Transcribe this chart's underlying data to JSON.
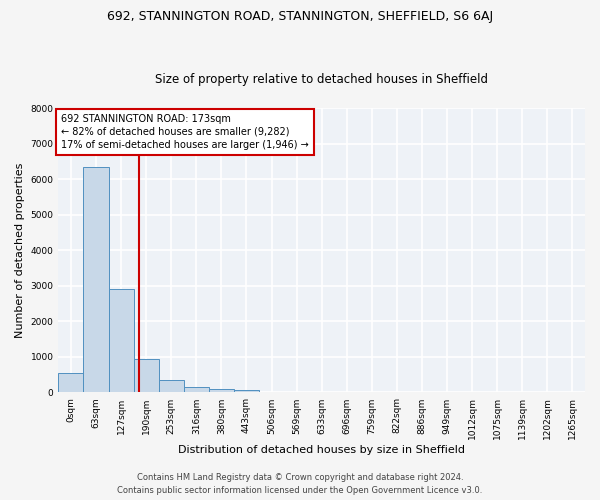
{
  "title_line1": "692, STANNINGTON ROAD, STANNINGTON, SHEFFIELD, S6 6AJ",
  "title_line2": "Size of property relative to detached houses in Sheffield",
  "xlabel": "Distribution of detached houses by size in Sheffield",
  "ylabel": "Number of detached properties",
  "bar_color": "#c8d8e8",
  "bar_edge_color": "#5090c0",
  "background_color": "#eef2f7",
  "grid_color": "#ffffff",
  "categories": [
    "0sqm",
    "63sqm",
    "127sqm",
    "190sqm",
    "253sqm",
    "316sqm",
    "380sqm",
    "443sqm",
    "506sqm",
    "569sqm",
    "633sqm",
    "696sqm",
    "759sqm",
    "822sqm",
    "886sqm",
    "949sqm",
    "1012sqm",
    "1075sqm",
    "1139sqm",
    "1202sqm",
    "1265sqm"
  ],
  "values": [
    550,
    6350,
    2900,
    950,
    340,
    155,
    100,
    70,
    0,
    0,
    0,
    0,
    0,
    0,
    0,
    0,
    0,
    0,
    0,
    0,
    0
  ],
  "ylim": [
    0,
    8000
  ],
  "yticks": [
    0,
    1000,
    2000,
    3000,
    4000,
    5000,
    6000,
    7000,
    8000
  ],
  "annotation_text": "692 STANNINGTON ROAD: 173sqm\n← 82% of detached houses are smaller (9,282)\n17% of semi-detached houses are larger (1,946) →",
  "annotation_box_color": "#ffffff",
  "annotation_border_color": "#cc0000",
  "vline_color": "#cc0000",
  "footer_line1": "Contains HM Land Registry data © Crown copyright and database right 2024.",
  "footer_line2": "Contains public sector information licensed under the Open Government Licence v3.0.",
  "title_fontsize": 9,
  "subtitle_fontsize": 8.5,
  "axis_label_fontsize": 8,
  "tick_fontsize": 6.5,
  "annotation_fontsize": 7,
  "footer_fontsize": 6
}
